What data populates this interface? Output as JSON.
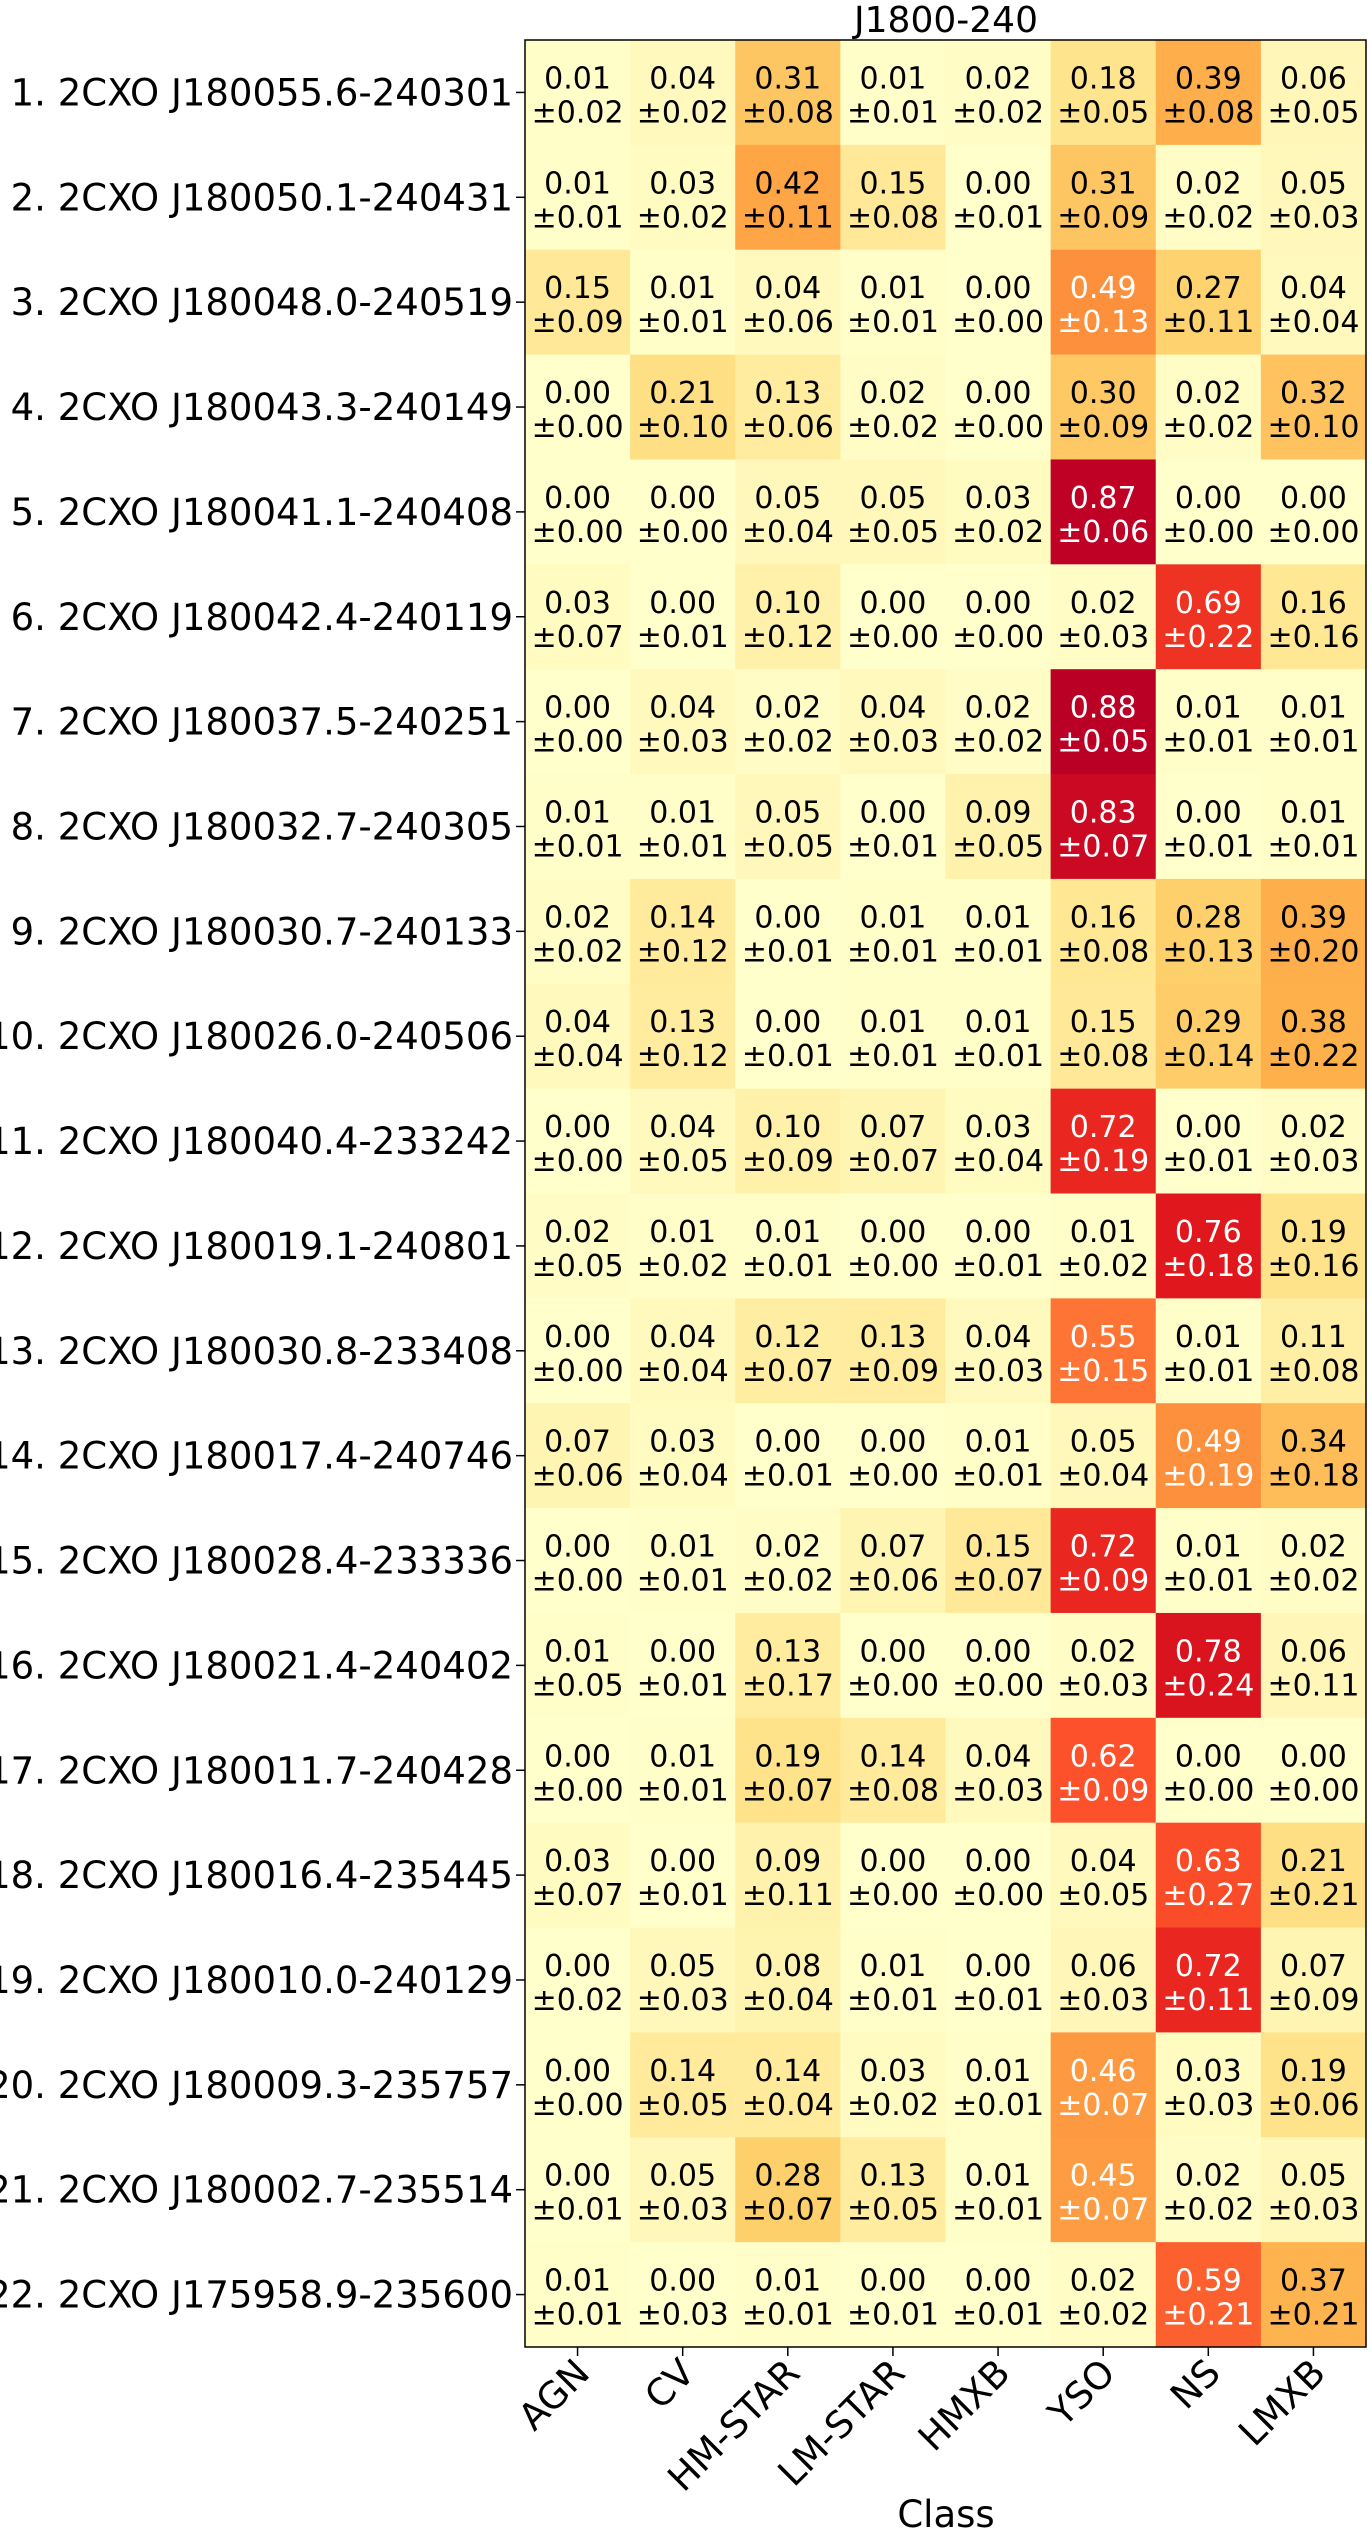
{
  "chart_data": {
    "type": "heatmap",
    "title": "J1800-240",
    "xlabel": "Class",
    "ylabel": "",
    "colormap": "YlOrRd",
    "value_range": [
      0,
      1
    ],
    "grid": false,
    "classes": [
      "AGN",
      "CV",
      "HM-STAR",
      "LM-STAR",
      "HMXB",
      "YSO",
      "NS",
      "LMXB"
    ],
    "sources": [
      "1. 2CXO J180055.6-240301",
      "2. 2CXO J180050.1-240431",
      "3. 2CXO J180048.0-240519",
      "4. 2CXO J180043.3-240149",
      "5. 2CXO J180041.1-240408",
      "6. 2CXO J180042.4-240119",
      "7. 2CXO J180037.5-240251",
      "8. 2CXO J180032.7-240305",
      "9. 2CXO J180030.7-240133",
      "10. 2CXO J180026.0-240506",
      "11. 2CXO J180040.4-233242",
      "12. 2CXO J180019.1-240801",
      "13. 2CXO J180030.8-233408",
      "14. 2CXO J180017.4-240746",
      "15. 2CXO J180028.4-233336",
      "16. 2CXO J180021.4-240402",
      "17. 2CXO J180011.7-240428",
      "18. 2CXO J180016.4-235445",
      "19. 2CXO J180010.0-240129",
      "20. 2CXO J180009.3-235757",
      "21. 2CXO J180002.7-235514",
      "22. 2CXO J175958.9-235600"
    ],
    "values": [
      [
        0.01,
        0.04,
        0.31,
        0.01,
        0.02,
        0.18,
        0.39,
        0.06
      ],
      [
        0.01,
        0.03,
        0.42,
        0.15,
        0.0,
        0.31,
        0.02,
        0.05
      ],
      [
        0.15,
        0.01,
        0.04,
        0.01,
        0.0,
        0.49,
        0.27,
        0.04
      ],
      [
        0.0,
        0.21,
        0.13,
        0.02,
        0.0,
        0.3,
        0.02,
        0.32
      ],
      [
        0.0,
        0.0,
        0.05,
        0.05,
        0.03,
        0.87,
        0.0,
        0.0
      ],
      [
        0.03,
        0.0,
        0.1,
        0.0,
        0.0,
        0.02,
        0.69,
        0.16
      ],
      [
        0.0,
        0.04,
        0.02,
        0.04,
        0.02,
        0.88,
        0.01,
        0.01
      ],
      [
        0.01,
        0.01,
        0.05,
        0.0,
        0.09,
        0.83,
        0.0,
        0.01
      ],
      [
        0.02,
        0.14,
        0.0,
        0.01,
        0.01,
        0.16,
        0.28,
        0.39
      ],
      [
        0.04,
        0.13,
        0.0,
        0.01,
        0.01,
        0.15,
        0.29,
        0.38
      ],
      [
        0.0,
        0.04,
        0.1,
        0.07,
        0.03,
        0.72,
        0.0,
        0.02
      ],
      [
        0.02,
        0.01,
        0.01,
        0.0,
        0.0,
        0.01,
        0.76,
        0.19
      ],
      [
        0.0,
        0.04,
        0.12,
        0.13,
        0.04,
        0.55,
        0.01,
        0.11
      ],
      [
        0.07,
        0.03,
        0.0,
        0.0,
        0.01,
        0.05,
        0.49,
        0.34
      ],
      [
        0.0,
        0.01,
        0.02,
        0.07,
        0.15,
        0.72,
        0.01,
        0.02
      ],
      [
        0.01,
        0.0,
        0.13,
        0.0,
        0.0,
        0.02,
        0.78,
        0.06
      ],
      [
        0.0,
        0.01,
        0.19,
        0.14,
        0.04,
        0.62,
        0.0,
        0.0
      ],
      [
        0.03,
        0.0,
        0.09,
        0.0,
        0.0,
        0.04,
        0.63,
        0.21
      ],
      [
        0.0,
        0.05,
        0.08,
        0.01,
        0.0,
        0.06,
        0.72,
        0.07
      ],
      [
        0.0,
        0.14,
        0.14,
        0.03,
        0.01,
        0.46,
        0.03,
        0.19
      ],
      [
        0.0,
        0.05,
        0.28,
        0.13,
        0.01,
        0.45,
        0.02,
        0.05
      ],
      [
        0.01,
        0.0,
        0.01,
        0.0,
        0.0,
        0.02,
        0.59,
        0.37
      ]
    ],
    "errors": [
      [
        0.02,
        0.02,
        0.08,
        0.01,
        0.02,
        0.05,
        0.08,
        0.05
      ],
      [
        0.01,
        0.02,
        0.11,
        0.08,
        0.01,
        0.09,
        0.02,
        0.03
      ],
      [
        0.09,
        0.01,
        0.06,
        0.01,
        0.0,
        0.13,
        0.11,
        0.04
      ],
      [
        0.0,
        0.1,
        0.06,
        0.02,
        0.0,
        0.09,
        0.02,
        0.1
      ],
      [
        0.0,
        0.0,
        0.04,
        0.05,
        0.02,
        0.06,
        0.0,
        0.0
      ],
      [
        0.07,
        0.01,
        0.12,
        0.0,
        0.0,
        0.03,
        0.22,
        0.16
      ],
      [
        0.0,
        0.03,
        0.02,
        0.03,
        0.02,
        0.05,
        0.01,
        0.01
      ],
      [
        0.01,
        0.01,
        0.05,
        0.01,
        0.05,
        0.07,
        0.01,
        0.01
      ],
      [
        0.02,
        0.12,
        0.01,
        0.01,
        0.01,
        0.08,
        0.13,
        0.2
      ],
      [
        0.04,
        0.12,
        0.01,
        0.01,
        0.01,
        0.08,
        0.14,
        0.22
      ],
      [
        0.0,
        0.05,
        0.09,
        0.07,
        0.04,
        0.19,
        0.01,
        0.03
      ],
      [
        0.05,
        0.02,
        0.01,
        0.0,
        0.01,
        0.02,
        0.18,
        0.16
      ],
      [
        0.0,
        0.04,
        0.07,
        0.09,
        0.03,
        0.15,
        0.01,
        0.08
      ],
      [
        0.06,
        0.04,
        0.01,
        0.0,
        0.01,
        0.04,
        0.19,
        0.18
      ],
      [
        0.0,
        0.01,
        0.02,
        0.06,
        0.07,
        0.09,
        0.01,
        0.02
      ],
      [
        0.05,
        0.01,
        0.17,
        0.0,
        0.0,
        0.03,
        0.24,
        0.11
      ],
      [
        0.0,
        0.01,
        0.07,
        0.08,
        0.03,
        0.09,
        0.0,
        0.0
      ],
      [
        0.07,
        0.01,
        0.11,
        0.0,
        0.0,
        0.05,
        0.27,
        0.21
      ],
      [
        0.02,
        0.03,
        0.04,
        0.01,
        0.01,
        0.03,
        0.11,
        0.09
      ],
      [
        0.0,
        0.05,
        0.04,
        0.02,
        0.01,
        0.07,
        0.03,
        0.06
      ],
      [
        0.01,
        0.03,
        0.07,
        0.05,
        0.01,
        0.07,
        0.02,
        0.03
      ],
      [
        0.01,
        0.03,
        0.01,
        0.01,
        0.01,
        0.02,
        0.21,
        0.21
      ]
    ]
  }
}
